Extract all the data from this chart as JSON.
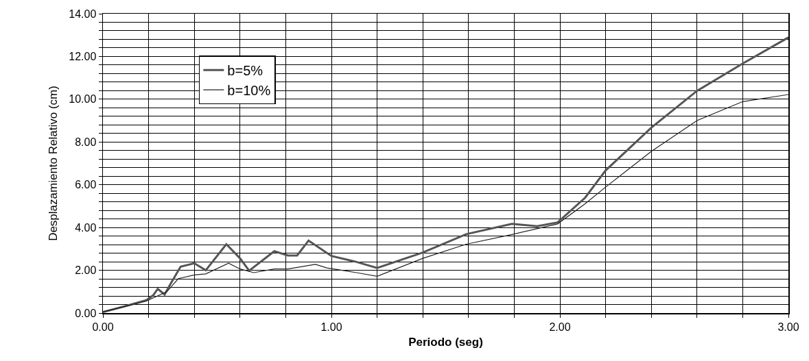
{
  "chart_data": {
    "type": "line",
    "xlabel": "Periodo (seg)",
    "ylabel": "Desplazamiento Relativo (cm)",
    "series": [
      {
        "name": "b=5%",
        "color": "#555555",
        "x": [
          0,
          0.1,
          0.19,
          0.22,
          0.24,
          0.27,
          0.3,
          0.34,
          0.4,
          0.45,
          0.54,
          0.6,
          0.64,
          0.75,
          0.81,
          0.85,
          0.9,
          1.0,
          1.11,
          1.2,
          1.4,
          1.59,
          1.79,
          1.9,
          1.99,
          2.11,
          2.2,
          2.4,
          2.6,
          2.8,
          3.0
        ],
        "values": [
          0.05,
          0.33,
          0.6,
          0.83,
          1.13,
          0.87,
          1.44,
          2.17,
          2.33,
          2.0,
          3.22,
          2.56,
          1.98,
          2.89,
          2.69,
          2.69,
          3.39,
          2.67,
          2.39,
          2.11,
          2.83,
          3.69,
          4.17,
          4.06,
          4.24,
          5.39,
          6.67,
          8.67,
          10.39,
          11.67,
          12.89
        ]
      },
      {
        "name": "b=10%",
        "color": "#222222",
        "x": [
          0,
          0.19,
          0.28,
          0.33,
          0.4,
          0.45,
          0.55,
          0.6,
          0.66,
          0.75,
          0.81,
          0.93,
          0.98,
          1.11,
          1.2,
          1.4,
          1.59,
          1.79,
          1.99,
          2.11,
          2.2,
          2.4,
          2.6,
          2.8,
          3.0
        ],
        "values": [
          0.05,
          0.56,
          1.0,
          1.61,
          1.78,
          1.83,
          2.33,
          2.06,
          1.89,
          2.06,
          2.06,
          2.28,
          2.11,
          1.89,
          1.72,
          2.56,
          3.22,
          3.67,
          4.17,
          5.11,
          5.89,
          7.56,
          9.0,
          9.89,
          10.22
        ]
      }
    ],
    "xlim": [
      0,
      3
    ],
    "xticks": [
      {
        "value": 0,
        "label": "0.00"
      },
      {
        "value": 0.2,
        "label": null
      },
      {
        "value": 0.4,
        "label": null
      },
      {
        "value": 0.6,
        "label": null
      },
      {
        "value": 0.8,
        "label": null
      },
      {
        "value": 1,
        "label": "1.00"
      },
      {
        "value": 1.2,
        "label": null
      },
      {
        "value": 1.4,
        "label": null
      },
      {
        "value": 1.6,
        "label": null
      },
      {
        "value": 1.8,
        "label": null
      },
      {
        "value": 2,
        "label": "2.00"
      },
      {
        "value": 2.2,
        "label": null
      },
      {
        "value": 2.4,
        "label": null
      },
      {
        "value": 2.6,
        "label": null
      },
      {
        "value": 2.8,
        "label": null
      },
      {
        "value": 3,
        "label": "3.00"
      }
    ],
    "ylim": [
      0,
      14
    ],
    "yticks": [
      {
        "value": 0,
        "label": "0.00"
      },
      {
        "value": 0.4,
        "label": null
      },
      {
        "value": 0.8,
        "label": null
      },
      {
        "value": 1.2,
        "label": null
      },
      {
        "value": 1.6,
        "label": null
      },
      {
        "value": 2,
        "label": "2.00"
      },
      {
        "value": 2.4,
        "label": null
      },
      {
        "value": 2.8,
        "label": null
      },
      {
        "value": 3.2,
        "label": null
      },
      {
        "value": 3.6,
        "label": null
      },
      {
        "value": 4,
        "label": "4.00"
      },
      {
        "value": 4.4,
        "label": null
      },
      {
        "value": 4.8,
        "label": null
      },
      {
        "value": 5.2,
        "label": null
      },
      {
        "value": 5.6,
        "label": null
      },
      {
        "value": 6,
        "label": "6.00"
      },
      {
        "value": 6.4,
        "label": null
      },
      {
        "value": 6.8,
        "label": null
      },
      {
        "value": 7.2,
        "label": null
      },
      {
        "value": 7.6,
        "label": null
      },
      {
        "value": 8,
        "label": "8.00"
      },
      {
        "value": 8.4,
        "label": null
      },
      {
        "value": 8.8,
        "label": null
      },
      {
        "value": 9.2,
        "label": null
      },
      {
        "value": 9.6,
        "label": null
      },
      {
        "value": 10,
        "label": "10.00"
      },
      {
        "value": 10.4,
        "label": null
      },
      {
        "value": 10.8,
        "label": null
      },
      {
        "value": 11.2,
        "label": null
      },
      {
        "value": 11.6,
        "label": null
      },
      {
        "value": 12,
        "label": "12.00"
      },
      {
        "value": 12.4,
        "label": null
      },
      {
        "value": 12.8,
        "label": null
      },
      {
        "value": 13.2,
        "label": null
      },
      {
        "value": 13.6,
        "label": null
      },
      {
        "value": 14,
        "label": "14.00"
      }
    ],
    "grid": true,
    "legend": "top left",
    "marker": "none",
    "line_style": "solid"
  }
}
